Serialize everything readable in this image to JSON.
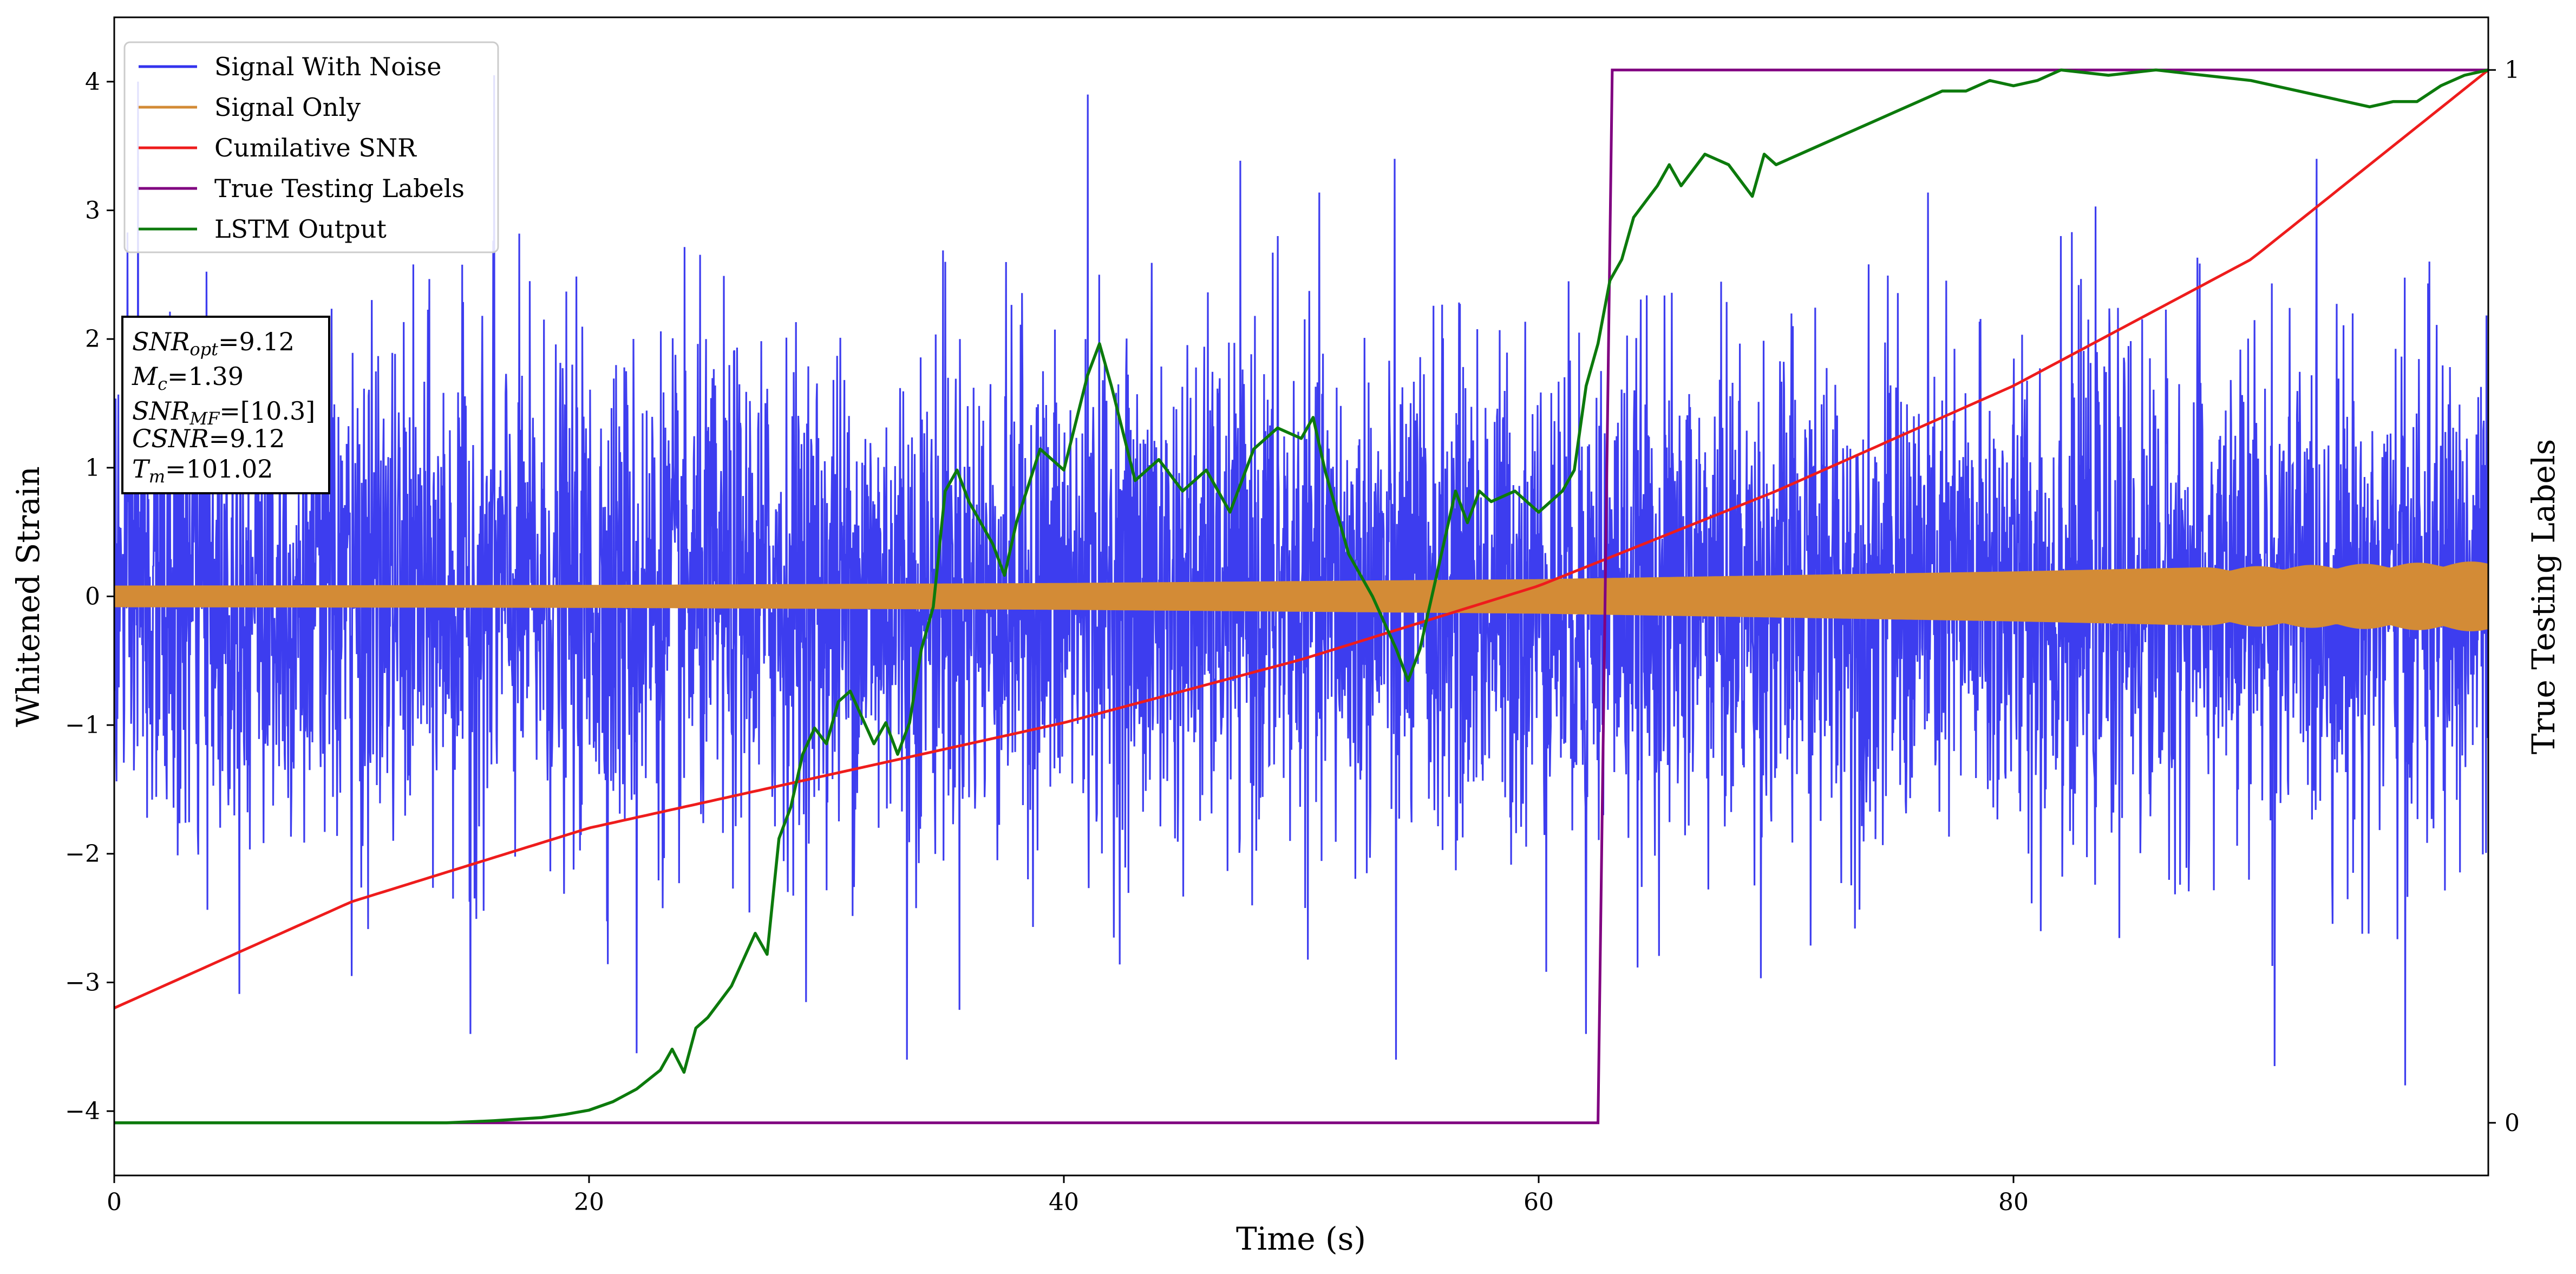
{
  "chart_data": {
    "type": "line",
    "xlabel": "Time (s)",
    "ylabel": "Whitened Strain",
    "y2label": "True Testing Labels",
    "xlim": [
      0,
      100
    ],
    "ylim": [
      -4.5,
      4.5
    ],
    "y2lim": [
      -0.05,
      1.05
    ],
    "xticks": [
      0,
      20,
      40,
      60,
      80
    ],
    "yticks": [
      -4,
      -3,
      -2,
      -1,
      0,
      1,
      2,
      3,
      4
    ],
    "y2ticks": [
      0,
      1
    ],
    "grid": false,
    "legend_position": "top-left",
    "legend": [
      "Signal With Noise",
      "Signal Only",
      "Cumilative SNR",
      "True Testing Labels",
      "LSTM Output"
    ],
    "info_box": [
      "SNR_opt=9.12",
      "M_c=1.39",
      "SNR_MF=[10.3]",
      "CSNR=9.12",
      "T_m=101.02"
    ],
    "series": [
      {
        "name": "Signal With Noise",
        "color": "#3333ee",
        "axis": "left",
        "kind": "noise",
        "sigma": 1.0,
        "extremes": [
          [
            1.0,
            4.0
          ],
          [
            16.0,
            4.05
          ],
          [
            41.0,
            3.9
          ],
          [
            33.4,
            -3.6
          ],
          [
            96.5,
            -3.8
          ],
          [
            91.0,
            -3.65
          ],
          [
            22.0,
            -3.55
          ],
          [
            54.0,
            -3.6
          ],
          [
            62.0,
            -3.4
          ],
          [
            15.0,
            -3.4
          ],
          [
            10.0,
            -2.95
          ],
          [
            82.0,
            2.8
          ],
          [
            35.0,
            2.6
          ],
          [
            49.0,
            2.8
          ]
        ]
      },
      {
        "name": "Signal Only",
        "color": "#d38b36",
        "axis": "left",
        "kind": "envelope",
        "x": [
          0,
          20,
          40,
          60,
          80,
          100
        ],
        "amplitude": [
          0.08,
          0.085,
          0.1,
          0.13,
          0.19,
          0.27
        ]
      },
      {
        "name": "Cumilative SNR",
        "color": "#ee1c1c",
        "axis": "right",
        "x": [
          0,
          10,
          20,
          30,
          40,
          50,
          60,
          70,
          80,
          90,
          100
        ],
        "y": [
          0.109,
          0.21,
          0.28,
          0.33,
          0.38,
          0.44,
          0.51,
          0.6,
          0.7,
          0.82,
          1.0
        ]
      },
      {
        "name": "True Testing Labels",
        "color": "#800080",
        "axis": "right",
        "x": [
          0,
          62.5,
          63.1,
          100
        ],
        "y": [
          0,
          0,
          1,
          1
        ]
      },
      {
        "name": "LSTM Output",
        "color": "#0c7a0c",
        "axis": "right",
        "x": [
          0,
          14,
          16,
          18,
          19,
          20,
          21,
          22,
          23,
          23.5,
          24,
          24.5,
          25,
          26,
          27,
          27.5,
          28,
          28.5,
          29,
          29.5,
          30,
          30.5,
          31,
          32,
          32.5,
          33,
          33.5,
          34,
          34.5,
          35,
          35.5,
          36,
          37,
          37.5,
          38,
          39,
          40,
          41,
          41.5,
          42,
          43,
          44,
          45,
          46,
          47,
          48,
          49,
          50,
          50.5,
          51,
          52,
          53,
          54,
          54.5,
          55,
          55.5,
          56,
          56.5,
          57,
          57.5,
          58,
          59,
          60,
          61,
          61.5,
          62,
          62.5,
          63,
          63.5,
          64,
          65,
          65.5,
          66,
          67,
          68,
          69,
          69.5,
          70,
          71,
          72,
          73,
          74,
          75,
          76,
          77,
          78,
          79,
          80,
          81,
          82,
          84,
          86,
          88,
          90,
          91,
          92,
          93,
          94,
          95,
          96,
          97,
          98,
          99,
          100
        ],
        "y": [
          0,
          0,
          0.002,
          0.005,
          0.008,
          0.012,
          0.02,
          0.032,
          0.05,
          0.07,
          0.048,
          0.09,
          0.1,
          0.13,
          0.18,
          0.16,
          0.27,
          0.3,
          0.35,
          0.375,
          0.36,
          0.4,
          0.41,
          0.36,
          0.38,
          0.35,
          0.38,
          0.45,
          0.49,
          0.6,
          0.62,
          0.59,
          0.55,
          0.52,
          0.57,
          0.64,
          0.62,
          0.71,
          0.74,
          0.7,
          0.61,
          0.63,
          0.6,
          0.62,
          0.58,
          0.64,
          0.66,
          0.65,
          0.67,
          0.62,
          0.54,
          0.5,
          0.45,
          0.42,
          0.45,
          0.5,
          0.55,
          0.6,
          0.57,
          0.6,
          0.59,
          0.6,
          0.58,
          0.6,
          0.62,
          0.7,
          0.74,
          0.8,
          0.82,
          0.86,
          0.89,
          0.91,
          0.89,
          0.92,
          0.91,
          0.88,
          0.92,
          0.91,
          0.92,
          0.93,
          0.94,
          0.95,
          0.96,
          0.97,
          0.98,
          0.98,
          0.99,
          0.985,
          0.99,
          1.0,
          0.995,
          1.0,
          0.995,
          0.99,
          0.985,
          0.98,
          0.975,
          0.97,
          0.965,
          0.97,
          0.97,
          0.985,
          0.995,
          1.0
        ]
      }
    ]
  }
}
